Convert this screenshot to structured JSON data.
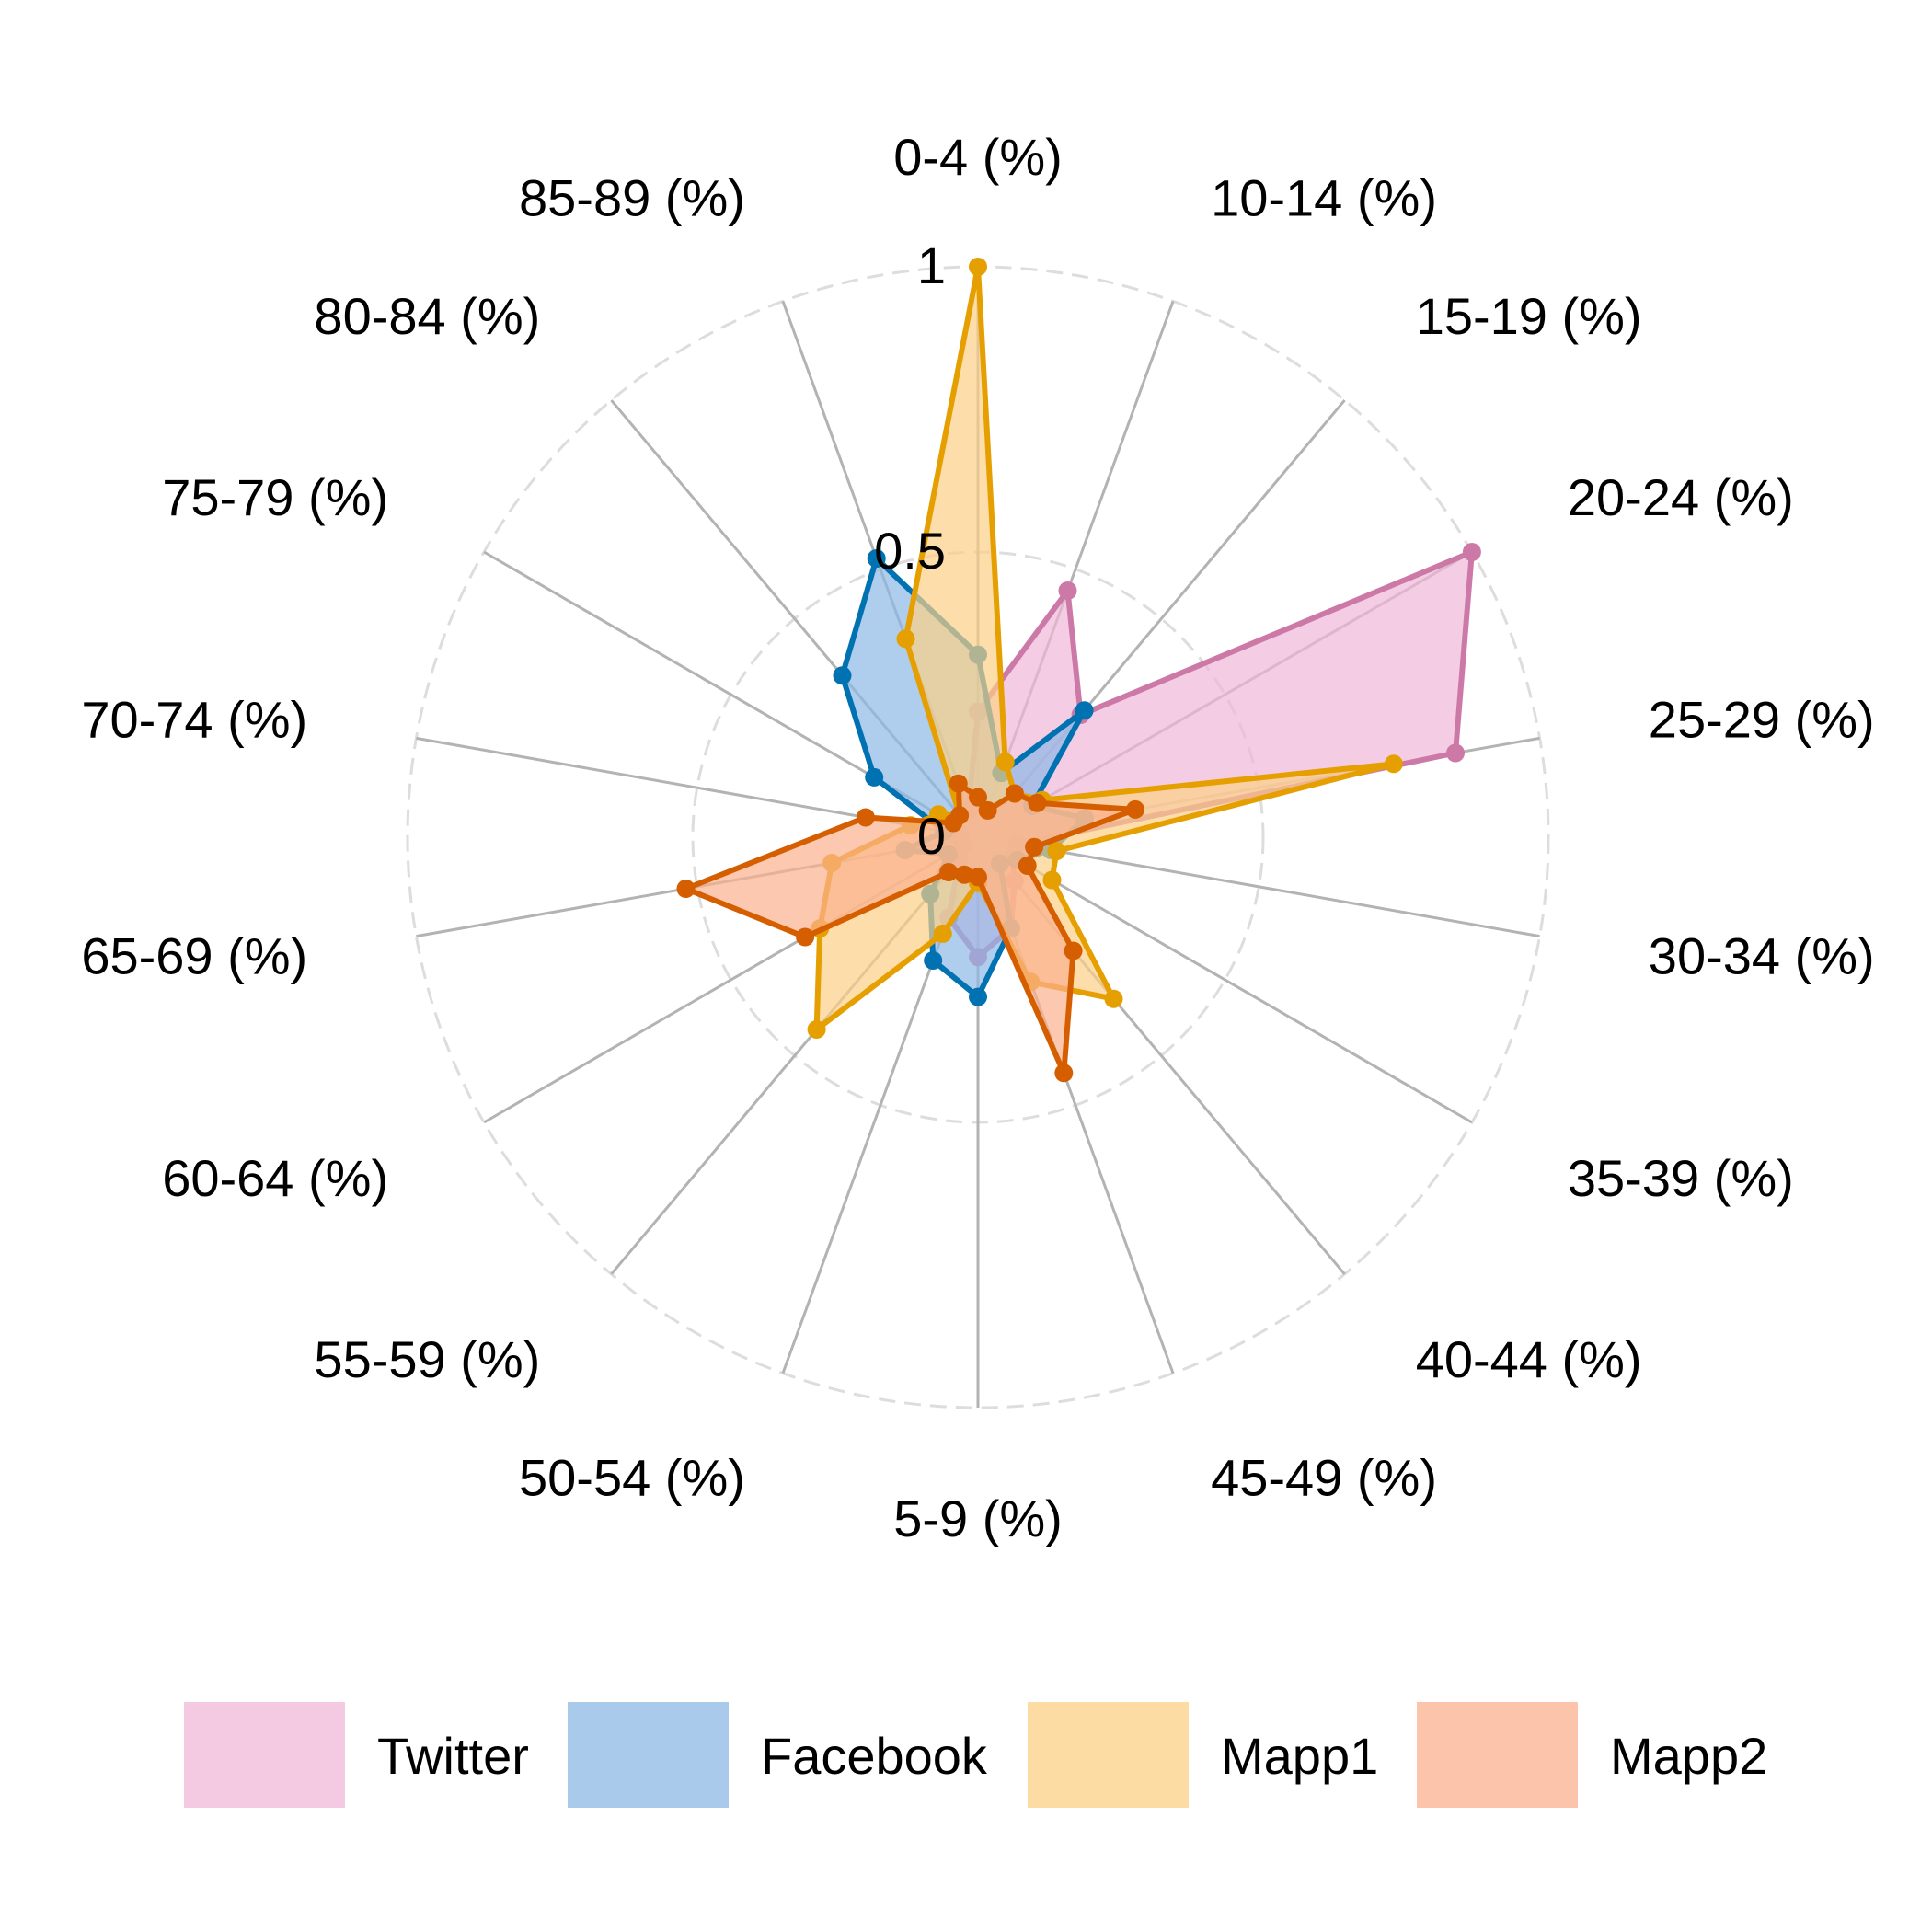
{
  "chart_data": {
    "type": "radar",
    "axes": [
      "0-4 (%)",
      "10-14 (%)",
      "15-19 (%)",
      "20-24 (%)",
      "25-29 (%)",
      "30-34 (%)",
      "35-39 (%)",
      "40-44 (%)",
      "45-49 (%)",
      "5-9 (%)",
      "50-54 (%)",
      "55-59 (%)",
      "60-64 (%)",
      "65-69 (%)",
      "70-74 (%)",
      "75-79 (%)",
      "80-84 (%)",
      "85-89 (%)"
    ],
    "ticks": [
      {
        "value": 0,
        "label": "0"
      },
      {
        "value": 0.5,
        "label": "0.5"
      },
      {
        "value": 1,
        "label": "1"
      }
    ],
    "range": [
      0,
      1
    ],
    "series": [
      {
        "name": "Twitter",
        "stroke": "#cc79a7",
        "fill": "#f0b8d8",
        "values": [
          0.22,
          0.46,
          0.28,
          1.0,
          0.85,
          0.07,
          0.07,
          0.1,
          0.17,
          0.21,
          0.15,
          0.05,
          0.03,
          0.03,
          0.03,
          0.05,
          0.05,
          0.05
        ]
      },
      {
        "name": "Facebook",
        "stroke": "#0072b2",
        "fill": "#8db8e6",
        "values": [
          0.32,
          0.12,
          0.29,
          0.11,
          0.19,
          0.13,
          0.08,
          0.06,
          0.17,
          0.28,
          0.23,
          0.13,
          0.06,
          0.13,
          0.06,
          0.21,
          0.37,
          0.52
        ]
      },
      {
        "name": "Mapp1",
        "stroke": "#e69f00",
        "fill": "#fcd086",
        "values": [
          1.0,
          0.14,
          0.1,
          0.13,
          0.74,
          0.14,
          0.15,
          0.37,
          0.27,
          0.08,
          0.18,
          0.44,
          0.32,
          0.26,
          0.12,
          0.08,
          0.05,
          0.37
        ]
      },
      {
        "name": "Mapp2",
        "stroke": "#d55e00",
        "fill": "#fbb08f",
        "values": [
          0.07,
          0.05,
          0.1,
          0.12,
          0.28,
          0.1,
          0.1,
          0.26,
          0.44,
          0.07,
          0.07,
          0.08,
          0.35,
          0.52,
          0.2,
          0.05,
          0.05,
          0.1
        ]
      }
    ],
    "grid": "dashed circles"
  }
}
